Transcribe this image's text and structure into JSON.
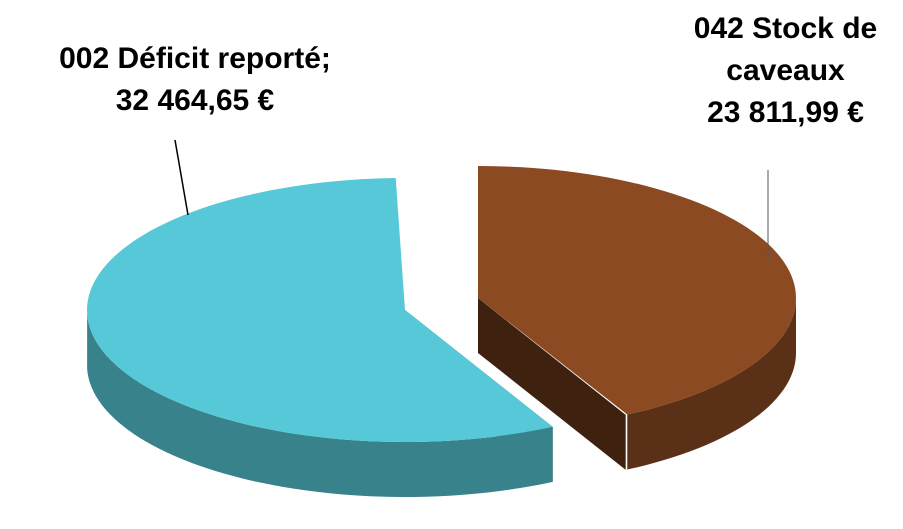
{
  "chart_data": {
    "type": "pie3d",
    "categories": [
      "002 Déficit reporté;",
      "042 Stock de caveaux"
    ],
    "values": [
      32464.65,
      23811.99
    ],
    "value_labels": [
      "32 464,65 €",
      "23 811,99 €"
    ],
    "colors": [
      "#56c8d8",
      "#8b4a22"
    ]
  }
}
